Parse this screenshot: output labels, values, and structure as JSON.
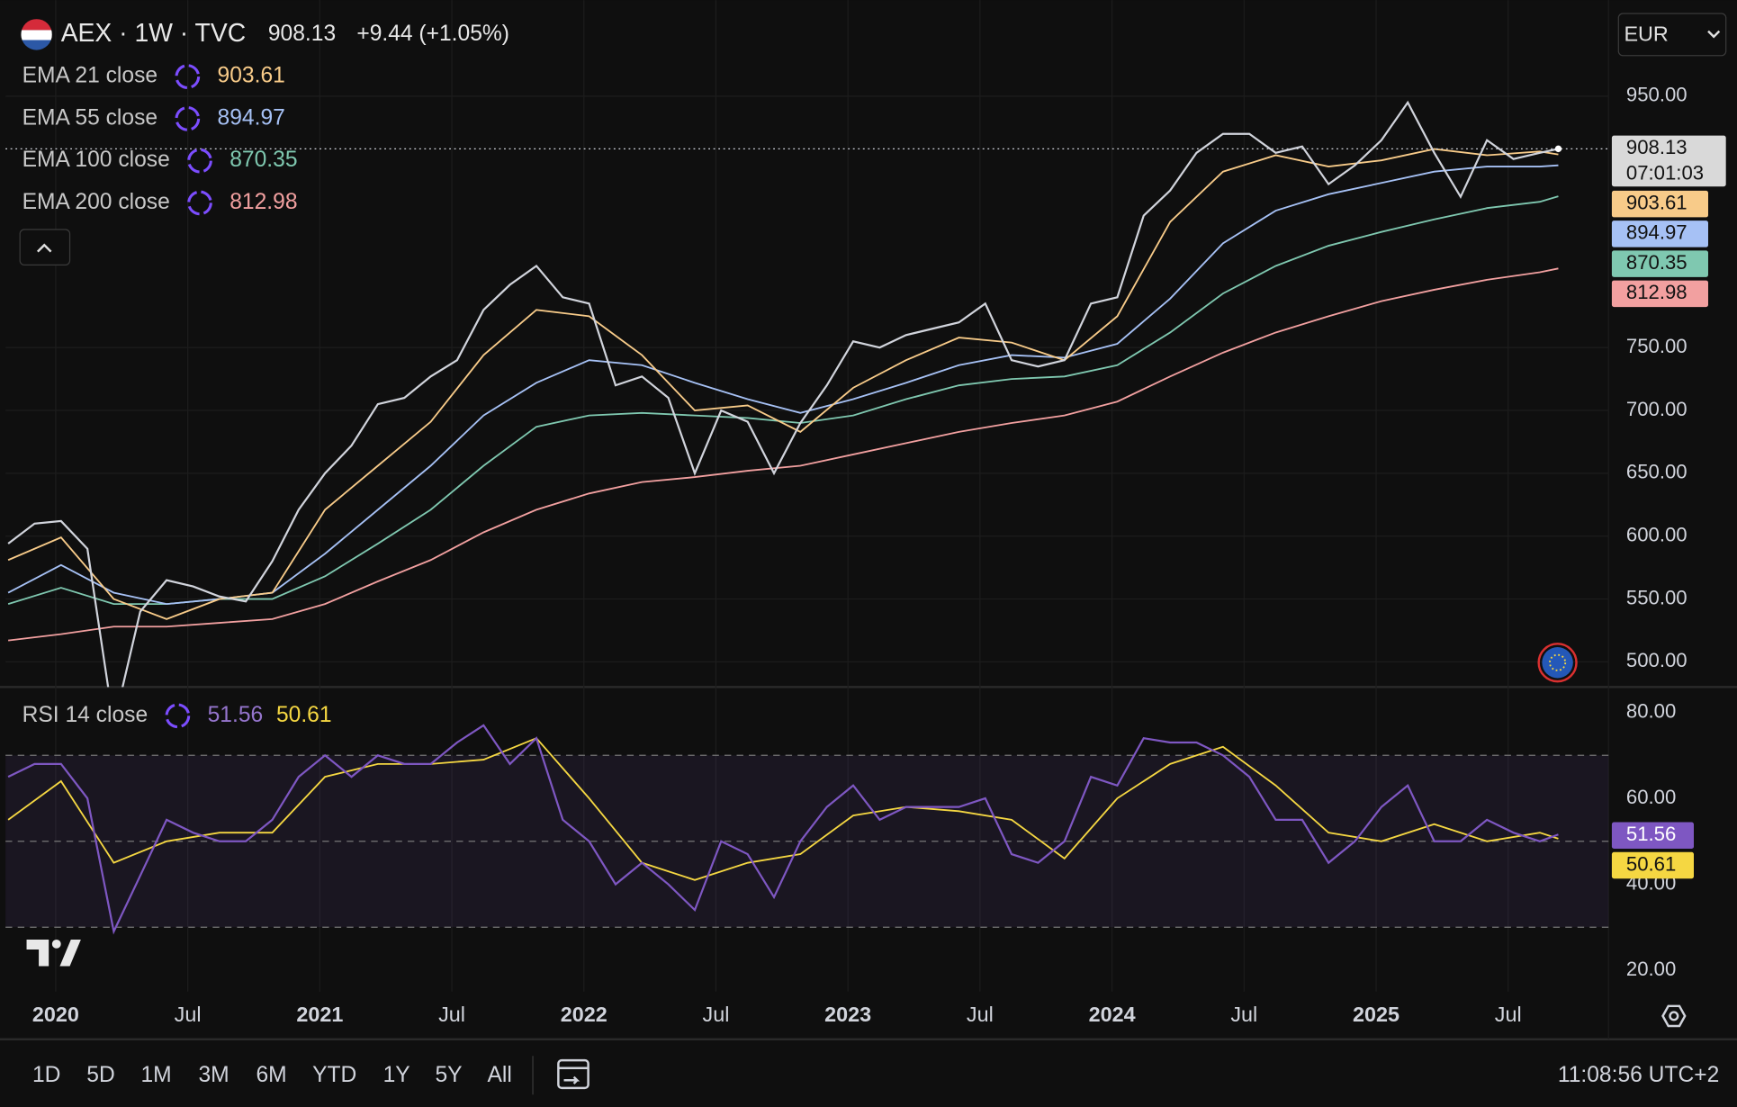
{
  "header": {
    "symbol": "AEX · 1W · TVC",
    "change": "+9.44 (+1.05%)",
    "currency": "EUR",
    "countdown": "07:01:03"
  },
  "chart_data": [
    {
      "type": "line",
      "xlim": [
        2019.81,
        2025.88
      ],
      "ylim": [
        480,
        1022
      ],
      "grid": true,
      "yticks": [
        {
          "value": 500,
          "label": "500.00"
        },
        {
          "value": 550,
          "label": "550.00"
        },
        {
          "value": 600,
          "label": "600.00"
        },
        {
          "value": 650,
          "label": "650.00"
        },
        {
          "value": 700,
          "label": "700.00"
        },
        {
          "value": 750,
          "label": "750.00"
        },
        {
          "value": 950,
          "label": "950.00"
        }
      ],
      "x": [
        2019.82,
        2019.92,
        2020.02,
        2020.12,
        2020.22,
        2020.32,
        2020.42,
        2020.52,
        2020.62,
        2020.72,
        2020.82,
        2020.92,
        2021.02,
        2021.12,
        2021.22,
        2021.32,
        2021.42,
        2021.52,
        2021.62,
        2021.72,
        2021.82,
        2021.92,
        2022.02,
        2022.12,
        2022.22,
        2022.32,
        2022.42,
        2022.52,
        2022.62,
        2022.72,
        2022.82,
        2022.92,
        2023.02,
        2023.12,
        2023.22,
        2023.32,
        2023.42,
        2023.52,
        2023.62,
        2023.72,
        2023.82,
        2023.92,
        2024.02,
        2024.12,
        2024.22,
        2024.32,
        2024.42,
        2024.52,
        2024.62,
        2024.72,
        2024.82,
        2024.92,
        2025.02,
        2025.12,
        2025.22,
        2025.32,
        2025.42,
        2025.52,
        2025.62,
        2025.69
      ],
      "series": [
        {
          "color": "#d1d4dc",
          "values": [
            594,
            610,
            612,
            590,
            450,
            540,
            565,
            560,
            552,
            548,
            580,
            621,
            650,
            672,
            705,
            710,
            727,
            740,
            780,
            800,
            815,
            790,
            785,
            720,
            727,
            710,
            650,
            700,
            691,
            650,
            690,
            720,
            755,
            750,
            760,
            765,
            770,
            785,
            740,
            735,
            740,
            785,
            790,
            855,
            875,
            905,
            920,
            920,
            905,
            910,
            880,
            895,
            915,
            945,
            905,
            870,
            915,
            900,
            905,
            908.13
          ]
        },
        {
          "name": "EMA 21 close",
          "color": "#f8cb89",
          "x": [
            2019.82,
            2020.02,
            2020.22,
            2020.42,
            2020.62,
            2020.82,
            2021.02,
            2021.22,
            2021.42,
            2021.62,
            2021.82,
            2022.02,
            2022.22,
            2022.42,
            2022.62,
            2022.82,
            2023.02,
            2023.22,
            2023.42,
            2023.62,
            2023.82,
            2024.02,
            2024.22,
            2024.42,
            2024.62,
            2024.82,
            2025.02,
            2025.22,
            2025.42,
            2025.62,
            2025.69
          ],
          "values": [
            581,
            599,
            550,
            534,
            550,
            555,
            621,
            656,
            691,
            744,
            780,
            775,
            744,
            700,
            704,
            683,
            718,
            740,
            758,
            754,
            740,
            775,
            850,
            890,
            903,
            894,
            899,
            908,
            903,
            906,
            903.61
          ]
        },
        {
          "name": "EMA 55 close",
          "color": "#a6c1f5",
          "x": [
            2019.82,
            2020.02,
            2020.22,
            2020.42,
            2020.62,
            2020.82,
            2021.02,
            2021.22,
            2021.42,
            2021.62,
            2021.82,
            2022.02,
            2022.22,
            2022.42,
            2022.62,
            2022.82,
            2023.02,
            2023.22,
            2023.42,
            2023.62,
            2023.82,
            2024.02,
            2024.22,
            2024.42,
            2024.62,
            2024.82,
            2025.02,
            2025.22,
            2025.42,
            2025.62,
            2025.69
          ],
          "values": [
            555,
            577,
            555,
            546,
            550,
            555,
            586,
            621,
            656,
            696,
            722,
            740,
            736,
            722,
            709,
            698,
            709,
            722,
            736,
            744,
            742,
            753,
            789,
            833,
            859,
            872,
            881,
            890,
            894,
            894,
            894.97
          ]
        },
        {
          "name": "EMA 100 close",
          "color": "#7fc8b0",
          "x": [
            2019.82,
            2020.02,
            2020.22,
            2020.42,
            2020.62,
            2020.82,
            2021.02,
            2021.22,
            2021.42,
            2021.62,
            2021.82,
            2022.02,
            2022.22,
            2022.42,
            2022.62,
            2022.82,
            2023.02,
            2023.22,
            2023.42,
            2023.62,
            2023.82,
            2024.02,
            2024.22,
            2024.42,
            2024.62,
            2024.82,
            2025.02,
            2025.22,
            2025.42,
            2025.62,
            2025.69
          ],
          "values": [
            546,
            559,
            546,
            546,
            550,
            550,
            568,
            594,
            621,
            656,
            687,
            696,
            698,
            696,
            694,
            690,
            696,
            709,
            720,
            725,
            727,
            736,
            762,
            793,
            815,
            831,
            842,
            852,
            861,
            866,
            870.35
          ]
        },
        {
          "name": "EMA 200 close",
          "color": "#f2a0a0",
          "x": [
            2019.82,
            2020.02,
            2020.22,
            2020.42,
            2020.62,
            2020.82,
            2021.02,
            2021.22,
            2021.42,
            2021.62,
            2021.82,
            2022.02,
            2022.22,
            2022.42,
            2022.62,
            2022.82,
            2023.02,
            2023.22,
            2023.42,
            2023.62,
            2023.82,
            2024.02,
            2024.22,
            2024.42,
            2024.62,
            2024.82,
            2025.02,
            2025.22,
            2025.42,
            2025.62,
            2025.69
          ],
          "values": [
            517,
            522,
            528,
            528,
            531,
            534,
            546,
            564,
            581,
            603,
            621,
            634,
            643,
            647,
            652,
            656,
            665,
            674,
            683,
            690,
            696,
            707,
            727,
            746,
            762,
            775,
            787,
            796,
            804,
            810,
            812.98
          ]
        }
      ]
    },
    {
      "type": "line",
      "title": "RSI 14 close",
      "xlim": [
        2019.81,
        2025.88
      ],
      "ylim": [
        15,
        85.4
      ],
      "levels": [
        70,
        50,
        30
      ],
      "yticks": [
        {
          "value": 20,
          "label": "20.00"
        },
        {
          "value": 40,
          "label": "40.00"
        },
        {
          "value": 60,
          "label": "60.00"
        },
        {
          "value": 80,
          "label": "80.00"
        }
      ],
      "xticks": [
        {
          "value": 2020,
          "label": "2020"
        },
        {
          "value": 2020.5,
          "label": "Jul"
        },
        {
          "value": 2021,
          "label": "2021"
        },
        {
          "value": 2021.5,
          "label": "Jul"
        },
        {
          "value": 2022,
          "label": "2022"
        },
        {
          "value": 2022.5,
          "label": "Jul"
        },
        {
          "value": 2023,
          "label": "2023"
        },
        {
          "value": 2023.5,
          "label": "Jul"
        },
        {
          "value": 2024,
          "label": "2024"
        },
        {
          "value": 2024.5,
          "label": "Jul"
        },
        {
          "value": 2025,
          "label": "2025"
        },
        {
          "value": 2025.5,
          "label": "Jul"
        }
      ],
      "x": [
        2019.82,
        2019.92,
        2020.02,
        2020.12,
        2020.22,
        2020.32,
        2020.42,
        2020.52,
        2020.62,
        2020.72,
        2020.82,
        2020.92,
        2021.02,
        2021.12,
        2021.22,
        2021.32,
        2021.42,
        2021.52,
        2021.62,
        2021.72,
        2021.82,
        2021.92,
        2022.02,
        2022.12,
        2022.22,
        2022.32,
        2022.42,
        2022.52,
        2022.62,
        2022.72,
        2022.82,
        2022.92,
        2023.02,
        2023.12,
        2023.22,
        2023.32,
        2023.42,
        2023.52,
        2023.62,
        2023.72,
        2023.82,
        2023.92,
        2024.02,
        2024.12,
        2024.22,
        2024.32,
        2024.42,
        2024.52,
        2024.62,
        2024.72,
        2024.82,
        2024.92,
        2025.02,
        2025.12,
        2025.22,
        2025.32,
        2025.42,
        2025.52,
        2025.62,
        2025.69
      ],
      "series": [
        {
          "color": "#7e57c2",
          "values": [
            65,
            68,
            68,
            60,
            29,
            42,
            55,
            52,
            50,
            50,
            55,
            65,
            70,
            65,
            70,
            68,
            68,
            73,
            77,
            68,
            74,
            55,
            50,
            40,
            45,
            40,
            34,
            50,
            47,
            37,
            50,
            58,
            63,
            55,
            58,
            58,
            58,
            60,
            47,
            45,
            50,
            65,
            63,
            74,
            73,
            73,
            70,
            65,
            55,
            55,
            45,
            50,
            58,
            63,
            50,
            50,
            55,
            52,
            50,
            51.56
          ]
        },
        {
          "color": "#f5d742",
          "x": [
            2019.82,
            2020.02,
            2020.22,
            2020.42,
            2020.62,
            2020.82,
            2021.02,
            2021.22,
            2021.42,
            2021.62,
            2021.82,
            2022.02,
            2022.22,
            2022.42,
            2022.62,
            2022.82,
            2023.02,
            2023.22,
            2023.42,
            2023.62,
            2023.82,
            2024.02,
            2024.22,
            2024.42,
            2024.62,
            2024.82,
            2025.02,
            2025.22,
            2025.42,
            2025.62,
            2025.69
          ],
          "values": [
            55,
            64,
            45,
            50,
            52,
            52,
            65,
            68,
            68,
            69,
            74,
            60,
            45,
            41,
            45,
            47,
            56,
            58,
            57,
            55,
            46,
            60,
            68,
            72,
            63,
            52,
            50,
            54,
            50,
            52,
            50.61
          ]
        }
      ]
    }
  ],
  "toolbar": {
    "ranges": [
      "1D",
      "5D",
      "1M",
      "3M",
      "6M",
      "YTD",
      "1Y",
      "5Y",
      "All"
    ],
    "time": "11:08:56 UTC+2"
  }
}
